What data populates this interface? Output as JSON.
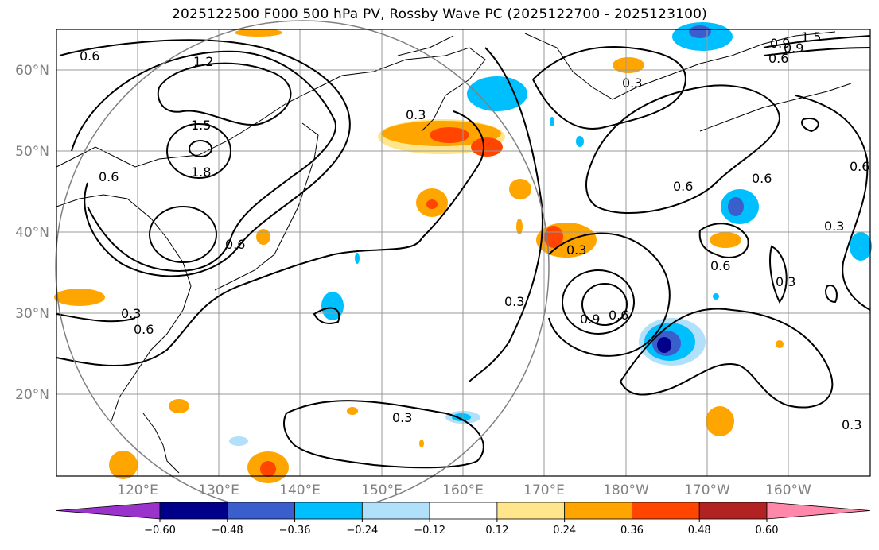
{
  "title": "2025122500 F000 500 hPa PV, Rossby Wave PC (2025122700 - 2025123100)",
  "lat_labels": [
    "60°N",
    "50°N",
    "40°N",
    "30°N",
    "20°N"
  ],
  "lon_labels": [
    "120°E",
    "130°E",
    "140°E",
    "150°E",
    "160°E",
    "170°E",
    "180°W",
    "170°W",
    "160°W"
  ],
  "contour_labels": [
    "0.6",
    "1.2",
    "1.5",
    "1.8",
    "0.6",
    "0.6",
    "0.3",
    "0.6",
    "0.3",
    "0.9",
    "0.6",
    "0.3",
    "0.3",
    "0.3",
    "0.6",
    "0.6",
    "0.6",
    "0.9",
    "1.5",
    "0.9",
    "0.6",
    "0.3",
    "0.6",
    "0.3",
    "0.3",
    "0.3"
  ],
  "colorbar": {
    "ticks": [
      "−0.60",
      "−0.48",
      "−0.36",
      "−0.24",
      "−0.12",
      "0.12",
      "0.24",
      "0.36",
      "0.48",
      "0.60"
    ],
    "colors": [
      "#9933cc",
      "#00008b",
      "#3a5fcd",
      "#00bfff",
      "#b0e0fa",
      "#ffffff",
      "#ffe68c",
      "#ffa500",
      "#ff4500",
      "#b22222",
      "#ff88aa"
    ]
  }
}
